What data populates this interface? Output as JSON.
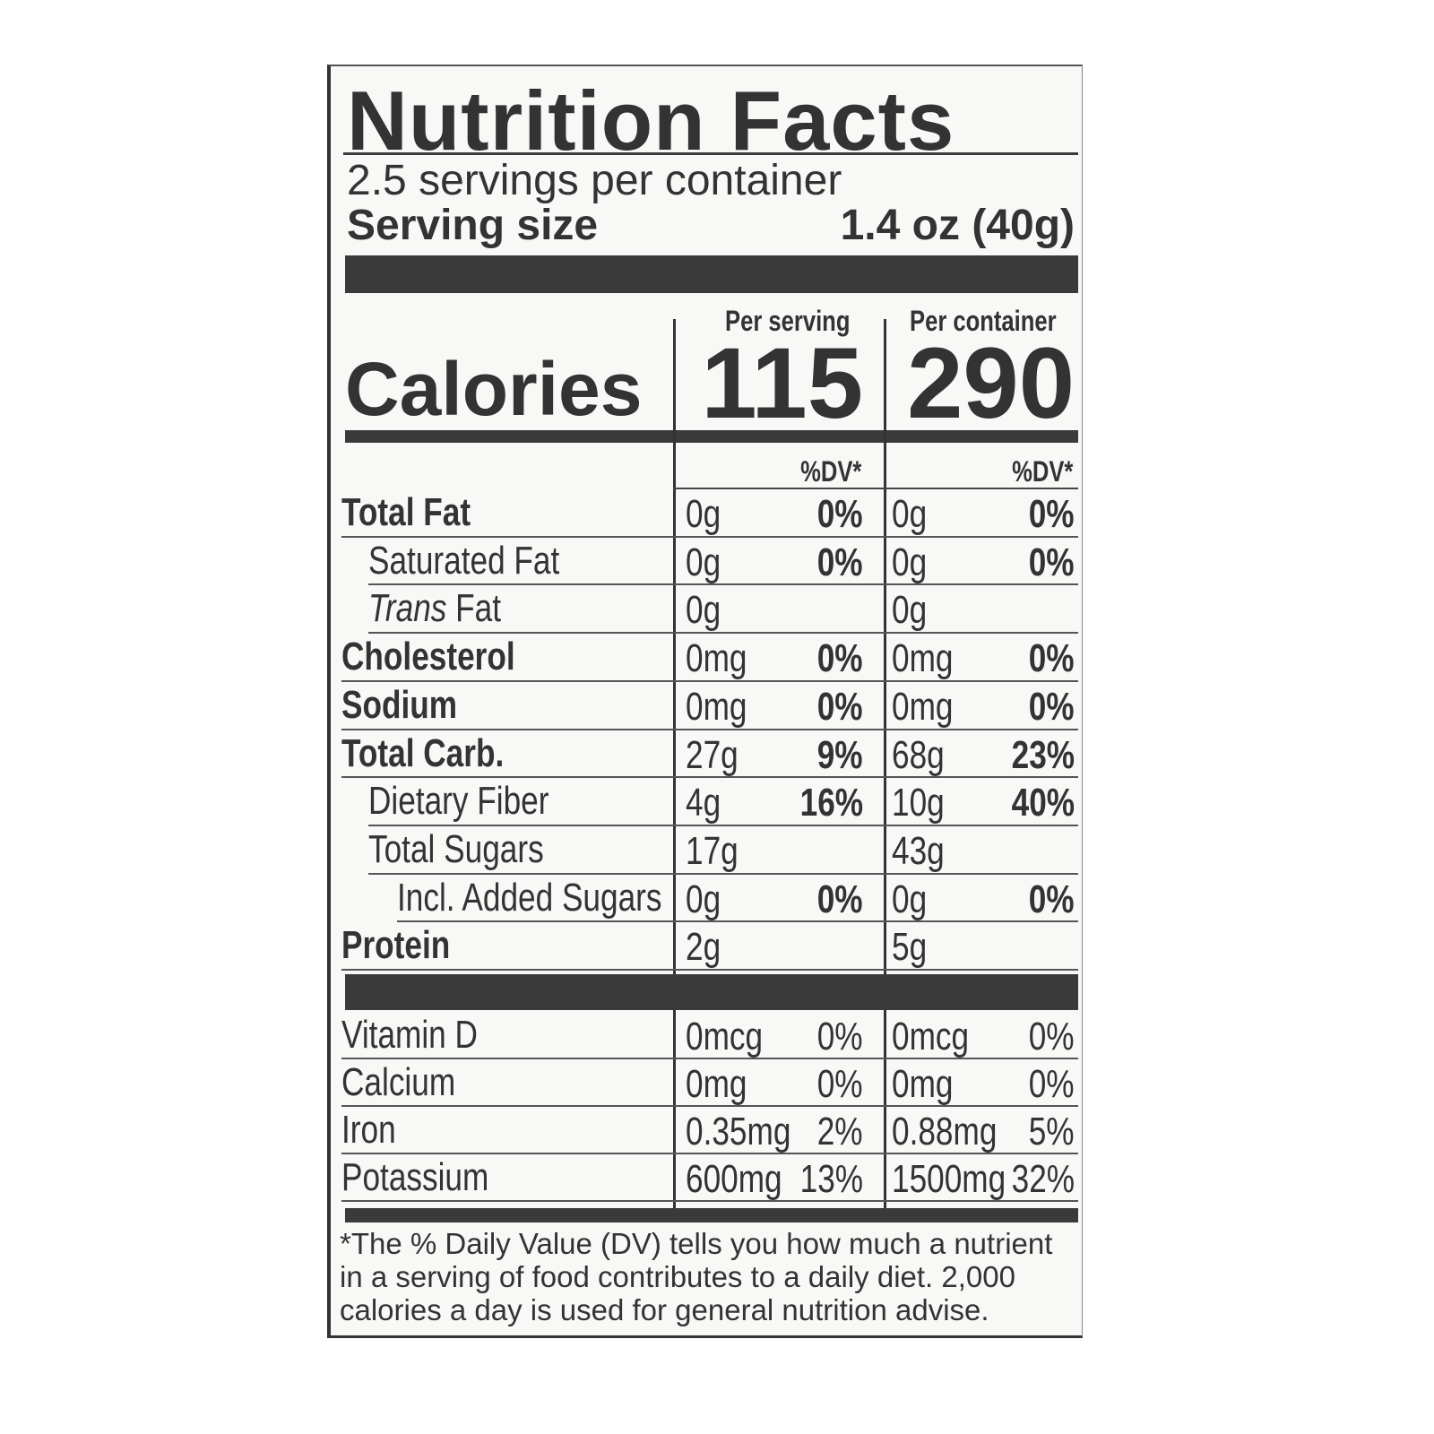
{
  "title": "Nutrition Facts",
  "servings": "2.5 servings per container",
  "serving_size": {
    "label": "Serving size",
    "value": "1.4 oz (40g)"
  },
  "calories": {
    "label": "Calories",
    "per_serving_header": "Per serving",
    "per_container_header": "Per container",
    "per_serving": "115",
    "per_container": "290"
  },
  "dv_headers": [
    "%DV*",
    "%DV*"
  ],
  "nutrients": [
    {
      "name": "Total Fat",
      "serving_amount": "0g",
      "serving_dv": "0%",
      "container_amount": "0g",
      "container_dv": "0%"
    },
    {
      "name": "Saturated Fat",
      "serving_amount": "0g",
      "serving_dv": "0%",
      "container_amount": "0g",
      "container_dv": "0%"
    },
    {
      "name_italic": "Trans",
      "name": "Fat",
      "serving_amount": "0g",
      "container_amount": "0g"
    },
    {
      "name": "Cholesterol",
      "serving_amount": "0mg",
      "serving_dv": "0%",
      "container_amount": "0mg",
      "container_dv": "0%"
    },
    {
      "name": "Sodium",
      "serving_amount": "0mg",
      "serving_dv": "0%",
      "container_amount": "0mg",
      "container_dv": "0%"
    },
    {
      "name": "Total Carb.",
      "serving_amount": "27g",
      "serving_dv": "9%",
      "container_amount": "68g",
      "container_dv": "23%"
    },
    {
      "name": "Dietary Fiber",
      "serving_amount": "4g",
      "serving_dv": "16%",
      "container_amount": "10g",
      "container_dv": "40%"
    },
    {
      "name": "Total Sugars",
      "serving_amount": "17g",
      "container_amount": "43g"
    },
    {
      "name": "Incl. Added Sugars",
      "serving_amount": "0g",
      "serving_dv": "0%",
      "container_amount": "0g",
      "container_dv": "0%"
    },
    {
      "name": "Protein",
      "serving_amount": "2g",
      "container_amount": "5g"
    }
  ],
  "vitamins": [
    {
      "name": "Vitamin D",
      "serving_amount": "0mcg",
      "serving_dv": "0%",
      "container_amount": "0mcg",
      "container_dv": "0%"
    },
    {
      "name": "Calcium",
      "serving_amount": "0mg",
      "serving_dv": "0%",
      "container_amount": "0mg",
      "container_dv": "0%"
    },
    {
      "name": "Iron",
      "serving_amount": "0.35mg",
      "serving_dv": "2%",
      "container_amount": "0.88mg",
      "container_dv": "5%"
    },
    {
      "name": "Potassium",
      "serving_amount": "600mg",
      "serving_dv": "13%",
      "container_amount": "1500mg",
      "container_dv": "32%"
    }
  ],
  "footnote": "*The % Daily Value (DV) tells you how much a nutrient in a serving of food contributes to a daily diet. 2,000 calories a day is used for general nutrition advise."
}
